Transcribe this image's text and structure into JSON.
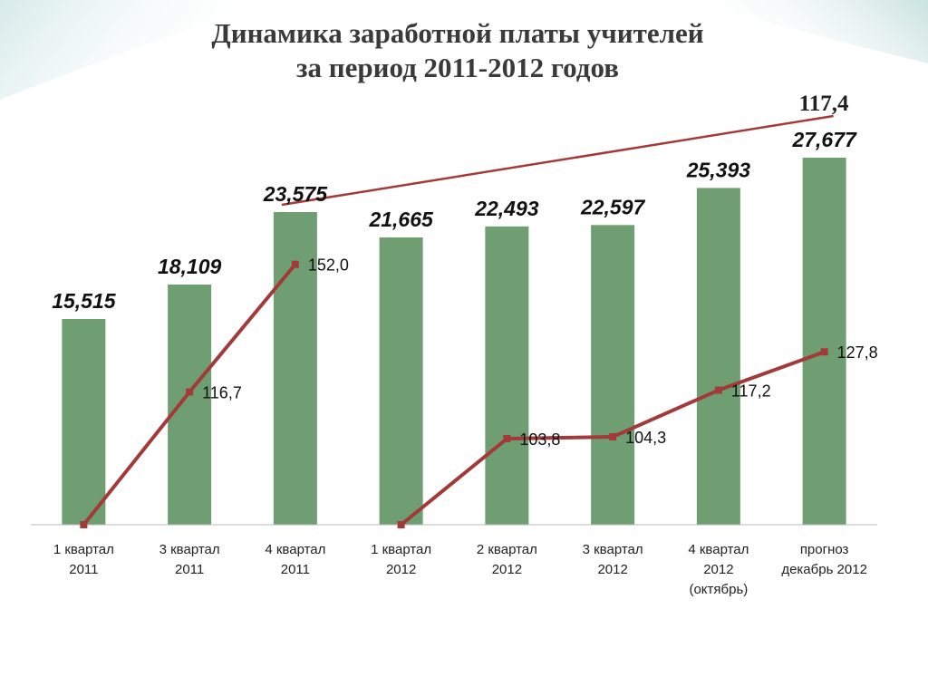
{
  "title": {
    "line1": "Динамика заработной платы учителей",
    "line2": "за период 2011-2012 годов"
  },
  "chart_data": {
    "type": "bar",
    "categories": [
      [
        "1 квартал",
        "2011"
      ],
      [
        "3 квартал",
        "2011"
      ],
      [
        "4 квартал",
        "2011"
      ],
      [
        "1 квартал",
        "2012"
      ],
      [
        "2 квартал",
        "2012"
      ],
      [
        "3 квартал",
        "2012"
      ],
      [
        "4 квартал",
        "2012",
        "(октябрь)"
      ],
      [
        "прогноз",
        "декабрь 2012"
      ]
    ],
    "bars": {
      "values": [
        15.515,
        18.109,
        23.575,
        21.665,
        22.493,
        22.597,
        25.393,
        27.677
      ],
      "labels": [
        "15,515",
        "18,109",
        "23,575",
        "21,665",
        "22,493",
        "22,597",
        "25,393",
        "27,677"
      ],
      "color": "#6e9e72"
    },
    "line": {
      "type": "line",
      "values": [
        null,
        116.7,
        152.0,
        null,
        103.8,
        104.3,
        117.2,
        127.8
      ],
      "labels": [
        "",
        "116,7",
        "152,0",
        "",
        "103,8",
        "104,3",
        "117,2",
        "127,8"
      ],
      "color": "#a33a3a"
    },
    "trend_label": "117,4",
    "trend_color": "#a33a3a",
    "bar_ylim": [
      0,
      30
    ],
    "line_ylim": [
      80,
      190
    ],
    "grid": false,
    "legend": "none"
  }
}
